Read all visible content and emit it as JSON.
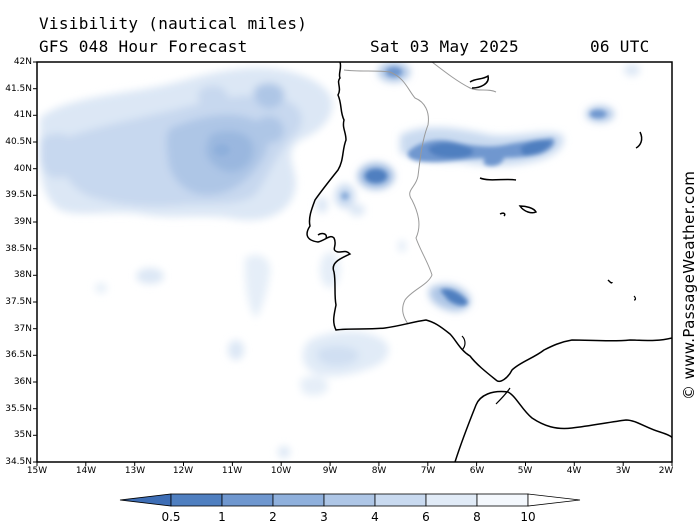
{
  "header": {
    "title": "Visibility (nautical miles)",
    "model": "GFS 048 Hour Forecast",
    "date": "Sat 03 May 2025",
    "time": "06 UTC"
  },
  "axes": {
    "latitudes": [
      "42N",
      "41.5N",
      "41N",
      "40.5N",
      "40N",
      "39.5N",
      "39N",
      "38.5N",
      "38N",
      "37.5N",
      "37N",
      "36.5N",
      "36N",
      "35.5N",
      "35N",
      "34.5N"
    ],
    "longitudes": [
      "15W",
      "14W",
      "13W",
      "12W",
      "11W",
      "10W",
      "9W",
      "8W",
      "7W",
      "6W",
      "5W",
      "4W",
      "3W",
      "2W"
    ]
  },
  "colorbar": {
    "labels": [
      "0.5",
      "1",
      "2",
      "3",
      "4",
      "6",
      "8",
      "10"
    ],
    "colors": [
      "#3d6db5",
      "#4f7fc0",
      "#6f97cf",
      "#8fb0dc",
      "#aec6e6",
      "#c9daf0",
      "#e1ebf7",
      "#f4f8fd",
      "#ffffff"
    ]
  },
  "credit": "© www.PassageWeather.com",
  "colors": {
    "land_line": "#000000",
    "border_line": "#9a9a9a",
    "frame": "#000000"
  }
}
